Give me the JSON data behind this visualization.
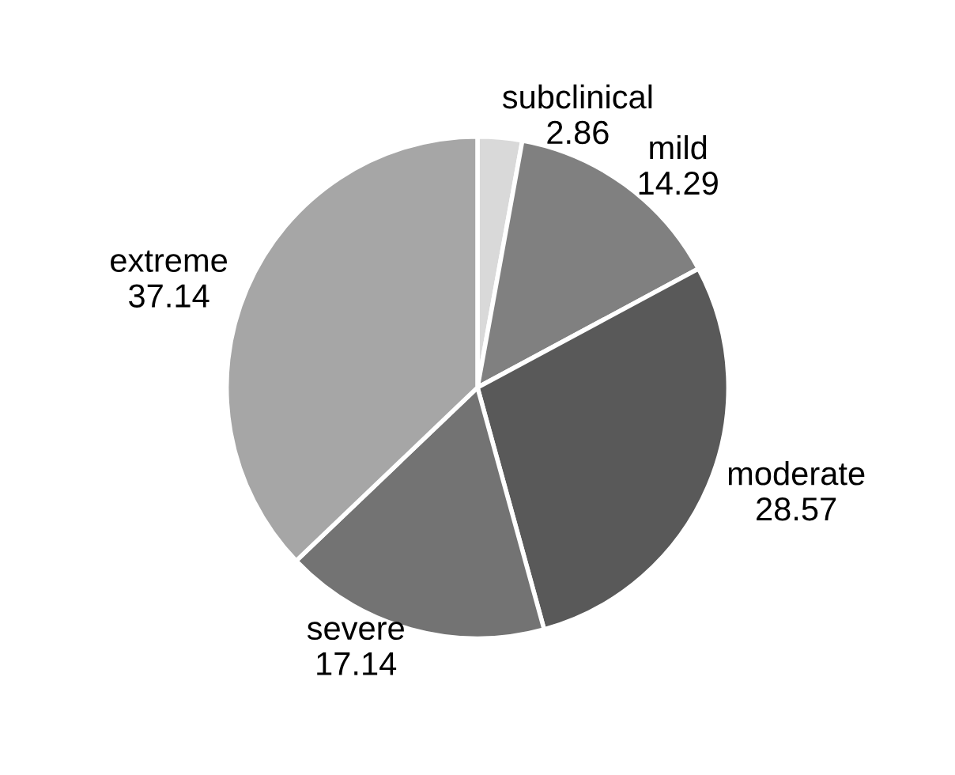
{
  "chart_data": {
    "type": "pie",
    "categories": [
      "subclinical",
      "mild",
      "moderate",
      "severe",
      "extreme"
    ],
    "values": [
      2.86,
      14.29,
      28.57,
      17.14,
      37.14
    ],
    "colors": [
      "#d9d9d9",
      "#808080",
      "#595959",
      "#737373",
      "#a6a6a6"
    ],
    "data_labels": true
  }
}
